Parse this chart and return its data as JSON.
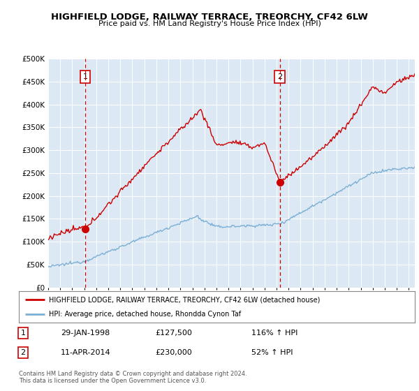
{
  "title": "HIGHFIELD LODGE, RAILWAY TERRACE, TREORCHY, CF42 6LW",
  "subtitle": "Price paid vs. HM Land Registry's House Price Index (HPI)",
  "plot_bg_color": "#dce9f5",
  "red_line_color": "#cc0000",
  "blue_line_color": "#7bafd4",
  "vline_color": "#cc0000",
  "sale1_date_num": 1998.08,
  "sale1_price": 127500,
  "sale1_label": "29-JAN-1998",
  "sale1_hpi": "116% ↑ HPI",
  "sale2_date_num": 2014.28,
  "sale2_price": 230000,
  "sale2_label": "11-APR-2014",
  "sale2_hpi": "52% ↑ HPI",
  "legend_line1": "HIGHFIELD LODGE, RAILWAY TERRACE, TREORCHY, CF42 6LW (detached house)",
  "legend_line2": "HPI: Average price, detached house, Rhondda Cynon Taf",
  "footer1": "Contains HM Land Registry data © Crown copyright and database right 2024.",
  "footer2": "This data is licensed under the Open Government Licence v3.0.",
  "ylim": [
    0,
    500000
  ],
  "yticks": [
    0,
    50000,
    100000,
    150000,
    200000,
    250000,
    300000,
    350000,
    400000,
    450000,
    500000
  ],
  "xlim_start": 1995.0,
  "xlim_end": 2025.5
}
